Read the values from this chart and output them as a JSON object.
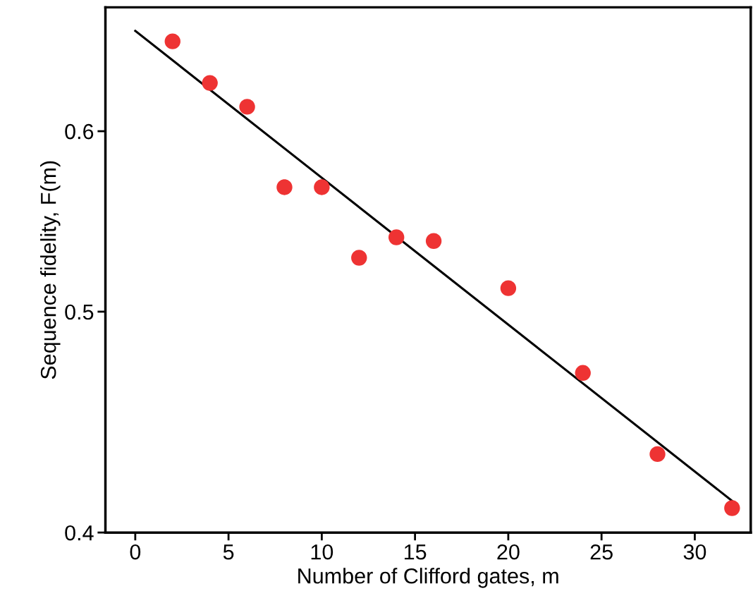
{
  "chart_data": {
    "type": "scatter",
    "xlabel": "Number of Clifford gates, m",
    "ylabel": "Sequence fidelity, F(m)",
    "log": "y",
    "grid": false,
    "legend": false,
    "marker": "circle",
    "x": [
      2,
      4,
      6,
      8,
      10,
      12,
      14,
      16,
      20,
      24,
      28,
      32
    ],
    "series": [
      {
        "color": "#ee3333",
        "values": [
          0.657,
          0.63,
          0.615,
          0.567,
          0.567,
          0.528,
          0.539,
          0.537,
          0.512,
          0.47,
          0.433,
          0.41
        ]
      },
      {
        "type": "line",
        "color": "#000000",
        "x": [
          0,
          32
        ],
        "values": [
          0.664,
          0.413
        ],
        "marker": "none",
        "line_style": "solid"
      }
    ],
    "xlim": [
      -1.6,
      33
    ],
    "xticks": [
      0,
      5,
      10,
      15,
      20,
      25,
      30
    ],
    "ylim": [
      0.4,
      0.68
    ],
    "yticks": [
      0.4,
      0.5,
      0.6
    ]
  }
}
